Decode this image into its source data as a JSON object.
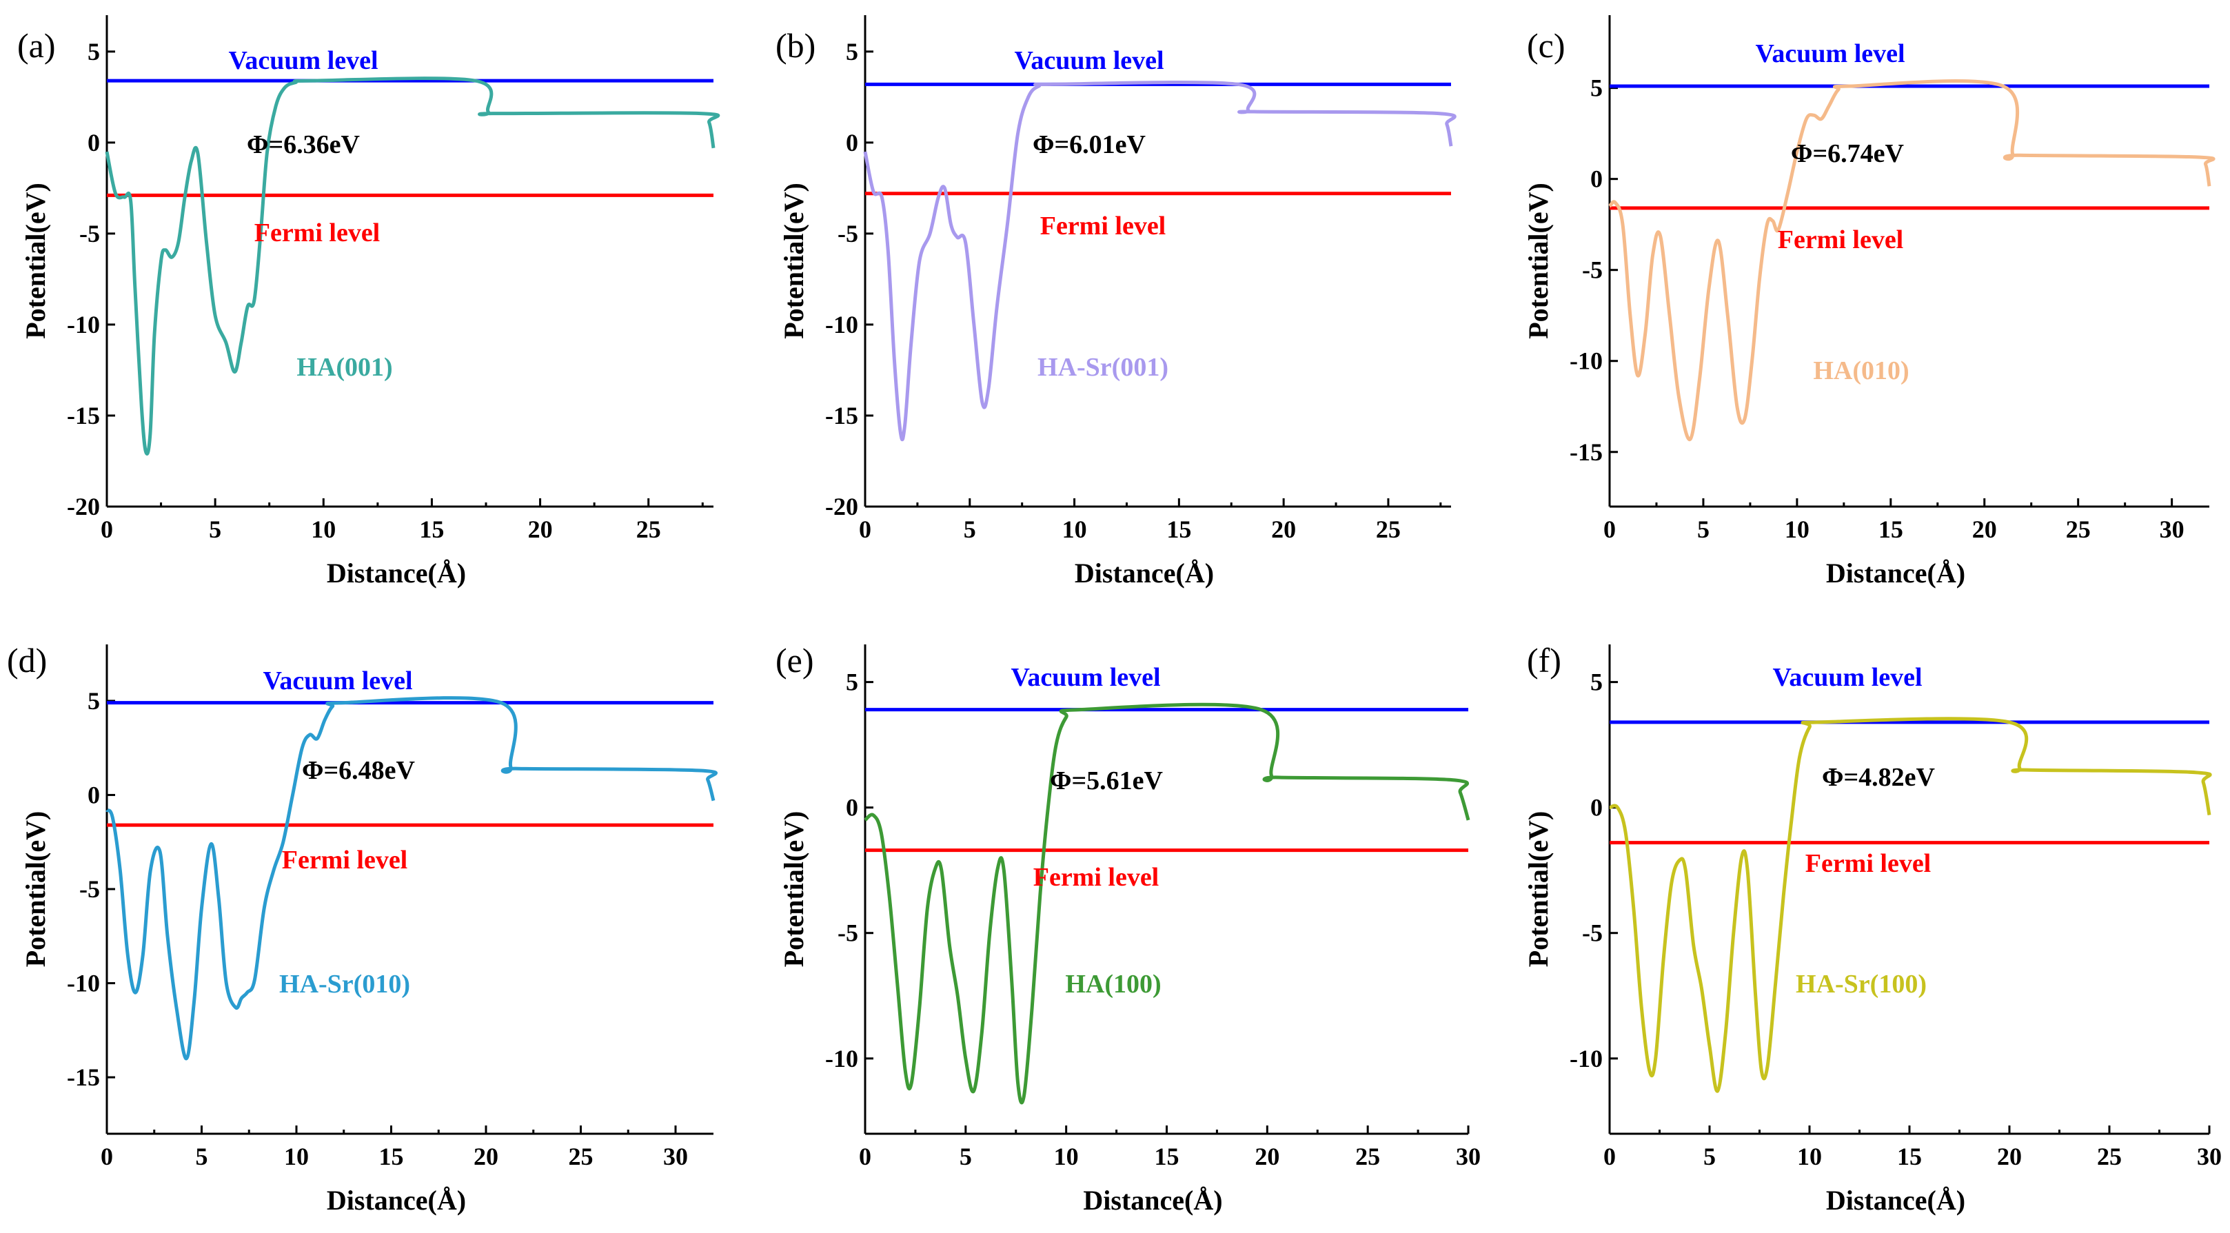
{
  "figure": {
    "xlabel": "Distance(Å)",
    "ylabel": "Potential(eV)",
    "vacuum_label": "Vacuum level",
    "fermi_label": "Fermi level",
    "vacuum_color": "#0000ff",
    "fermi_color": "#ff0000"
  },
  "chart_data": [
    {
      "panel": "(a)",
      "type": "line",
      "name": "HA(001)",
      "color": "#3aaaa0",
      "work_function": "Φ=6.36eV",
      "xlim": [
        0,
        28
      ],
      "ylim": [
        -20,
        7
      ],
      "xticks": [
        0,
        5,
        10,
        15,
        20,
        25
      ],
      "yticks": [
        -20,
        -15,
        -10,
        -5,
        0,
        5
      ],
      "vacuum_level": 3.4,
      "fermi_level": -2.9,
      "x": [
        0,
        0.4,
        0.8,
        1.1,
        1.3,
        1.6,
        1.8,
        2.0,
        2.2,
        2.5,
        2.7,
        3.0,
        3.3,
        3.6,
        3.9,
        4.2,
        4.6,
        5.0,
        5.5,
        5.9,
        6.2,
        6.5,
        6.8,
        7.1,
        7.4,
        7.8,
        8.2,
        8.7,
        9.5,
        17.0,
        17.6,
        18.0,
        27.4,
        27.8,
        28.0
      ],
      "y": [
        -0.5,
        -2.8,
        -3.0,
        -3.2,
        -8.0,
        -14.5,
        -17.0,
        -16.0,
        -10.5,
        -6.5,
        -5.9,
        -6.3,
        -5.5,
        -3.0,
        -1.0,
        -0.6,
        -5.5,
        -9.5,
        -11.0,
        -12.6,
        -11.0,
        -9.0,
        -8.7,
        -5.0,
        -0.5,
        2.0,
        3.0,
        3.3,
        3.4,
        3.4,
        1.7,
        1.6,
        1.6,
        1.1,
        -0.3
      ]
    },
    {
      "panel": "(b)",
      "type": "line",
      "name": "HA-Sr(001)",
      "color": "#a899ee",
      "work_function": "Φ=6.01eV",
      "xlim": [
        0,
        28
      ],
      "ylim": [
        -20,
        7
      ],
      "xticks": [
        0,
        5,
        10,
        15,
        20,
        25
      ],
      "yticks": [
        -20,
        -15,
        -10,
        -5,
        0,
        5
      ],
      "vacuum_level": 3.2,
      "fermi_level": -2.8,
      "x": [
        0,
        0.4,
        0.8,
        1.1,
        1.4,
        1.7,
        1.9,
        2.2,
        2.6,
        3.1,
        3.5,
        3.8,
        4.1,
        4.4,
        4.8,
        5.2,
        5.6,
        5.9,
        6.3,
        6.8,
        7.3,
        7.8,
        8.3,
        9.0,
        17.8,
        18.3,
        18.6,
        27.4,
        27.8,
        28.0
      ],
      "y": [
        -0.5,
        -2.7,
        -3.0,
        -6.0,
        -12.0,
        -16.0,
        -15.5,
        -11.0,
        -6.5,
        -5.0,
        -3.0,
        -2.5,
        -4.5,
        -5.2,
        -5.5,
        -10.0,
        -14.3,
        -13.5,
        -9.0,
        -4.5,
        0.5,
        2.5,
        3.1,
        3.2,
        3.2,
        1.8,
        1.7,
        1.6,
        1.0,
        -0.2
      ]
    },
    {
      "panel": "(c)",
      "type": "line",
      "name": "HA(010)",
      "color": "#f5ba8a",
      "work_function": "Φ=6.74eV",
      "xlim": [
        0,
        32
      ],
      "ylim": [
        -18,
        9
      ],
      "xticks": [
        0,
        5,
        10,
        15,
        20,
        25,
        30
      ],
      "yticks": [
        -15,
        -10,
        -5,
        0,
        5
      ],
      "vacuum_level": 5.1,
      "fermi_level": -1.6,
      "x": [
        0,
        0.3,
        0.7,
        1.1,
        1.5,
        1.9,
        2.3,
        2.7,
        3.2,
        3.7,
        4.3,
        4.8,
        5.3,
        5.8,
        6.3,
        6.8,
        7.2,
        7.6,
        8.0,
        8.4,
        8.7,
        9.0,
        9.5,
        10.0,
        10.5,
        10.9,
        11.3,
        11.7,
        12.2,
        12.8,
        21.0,
        21.5,
        21.9,
        31.4,
        31.8,
        32.0
      ],
      "y": [
        -1.5,
        -1.3,
        -2.5,
        -7.5,
        -10.8,
        -8.5,
        -4.2,
        -3.1,
        -7.5,
        -12.0,
        -14.3,
        -11.0,
        -6.0,
        -3.4,
        -7.5,
        -12.5,
        -13.2,
        -10.0,
        -5.5,
        -2.5,
        -2.3,
        -2.8,
        -0.8,
        1.5,
        3.3,
        3.5,
        3.3,
        4.0,
        4.9,
        5.1,
        5.1,
        1.4,
        1.3,
        1.2,
        0.8,
        -0.4
      ]
    },
    {
      "panel": "(d)",
      "type": "line",
      "name": "HA-Sr(010)",
      "color": "#2a9cd0",
      "work_function": "Φ=6.48eV",
      "xlim": [
        0,
        32
      ],
      "ylim": [
        -18,
        8
      ],
      "xticks": [
        0,
        5,
        10,
        15,
        20,
        25,
        30
      ],
      "yticks": [
        -15,
        -10,
        -5,
        0,
        5
      ],
      "vacuum_level": 4.9,
      "fermi_level": -1.6,
      "x": [
        0,
        0.3,
        0.7,
        1.1,
        1.5,
        1.9,
        2.3,
        2.8,
        3.2,
        3.7,
        4.2,
        4.6,
        5.0,
        5.5,
        5.9,
        6.3,
        6.8,
        7.1,
        7.4,
        7.8,
        8.3,
        8.8,
        9.3,
        9.8,
        10.3,
        10.7,
        11.1,
        11.5,
        11.9,
        12.4,
        20.8,
        21.3,
        21.7,
        31.3,
        31.7,
        32.0
      ],
      "y": [
        -0.8,
        -1.2,
        -4.0,
        -8.5,
        -10.5,
        -8.5,
        -4.0,
        -3.0,
        -7.5,
        -11.5,
        -14.0,
        -11.0,
        -6.0,
        -2.6,
        -5.5,
        -10.0,
        -11.3,
        -10.8,
        -10.5,
        -9.8,
        -6.0,
        -4.0,
        -2.5,
        0.0,
        2.5,
        3.2,
        3.0,
        4.0,
        4.7,
        4.9,
        4.9,
        1.5,
        1.4,
        1.3,
        0.8,
        -0.3
      ]
    },
    {
      "panel": "(e)",
      "type": "line",
      "name": "HA(100)",
      "color": "#3d9a35",
      "work_function": "Φ=5.61eV",
      "xlim": [
        0,
        30
      ],
      "ylim": [
        -13,
        6.5
      ],
      "xticks": [
        0,
        5,
        10,
        15,
        20,
        25,
        30
      ],
      "yticks": [
        -10,
        -5,
        0,
        5
      ],
      "vacuum_level": 3.9,
      "fermi_level": -1.7,
      "x": [
        0,
        0.4,
        0.8,
        1.2,
        1.6,
        2.0,
        2.3,
        2.7,
        3.1,
        3.5,
        3.8,
        4.2,
        4.6,
        5.0,
        5.4,
        5.8,
        6.2,
        6.6,
        6.9,
        7.3,
        7.6,
        7.9,
        8.3,
        8.7,
        9.1,
        9.5,
        10.0,
        10.6,
        19.7,
        20.2,
        20.6,
        29.2,
        29.6,
        30.0
      ],
      "y": [
        -0.5,
        -0.3,
        -1.0,
        -3.5,
        -7.0,
        -10.5,
        -11.0,
        -8.0,
        -4.0,
        -2.4,
        -2.5,
        -5.5,
        -7.5,
        -10.0,
        -11.3,
        -9.0,
        -5.0,
        -2.4,
        -2.5,
        -7.0,
        -11.0,
        -11.5,
        -8.0,
        -3.5,
        0.0,
        2.5,
        3.6,
        3.9,
        3.9,
        1.3,
        1.2,
        1.1,
        0.6,
        -0.5
      ]
    },
    {
      "panel": "(f)",
      "type": "line",
      "name": "HA-Sr(100)",
      "color": "#c7c21e",
      "work_function": "Φ=4.82eV",
      "xlim": [
        0,
        30
      ],
      "ylim": [
        -13,
        6.5
      ],
      "xticks": [
        0,
        5,
        10,
        15,
        20,
        25,
        30
      ],
      "yticks": [
        -10,
        -5,
        0,
        5
      ],
      "vacuum_level": 3.4,
      "fermi_level": -1.4,
      "x": [
        0,
        0.4,
        0.8,
        1.2,
        1.6,
        2.0,
        2.3,
        2.7,
        3.1,
        3.5,
        3.8,
        4.2,
        4.6,
        5.0,
        5.4,
        5.8,
        6.2,
        6.6,
        6.9,
        7.3,
        7.6,
        7.9,
        8.3,
        8.7,
        9.1,
        9.5,
        10.0,
        10.5,
        20.0,
        20.5,
        20.9,
        29.3,
        29.7,
        30.0
      ],
      "y": [
        0.0,
        0.0,
        -1.0,
        -4.0,
        -8.0,
        -10.5,
        -10.0,
        -6.0,
        -3.0,
        -2.1,
        -2.5,
        -5.5,
        -7.2,
        -9.5,
        -11.3,
        -9.0,
        -5.0,
        -2.0,
        -2.5,
        -7.5,
        -10.5,
        -10.3,
        -7.0,
        -3.5,
        -0.5,
        2.0,
        3.2,
        3.4,
        3.4,
        1.6,
        1.5,
        1.4,
        1.0,
        -0.3
      ]
    }
  ]
}
